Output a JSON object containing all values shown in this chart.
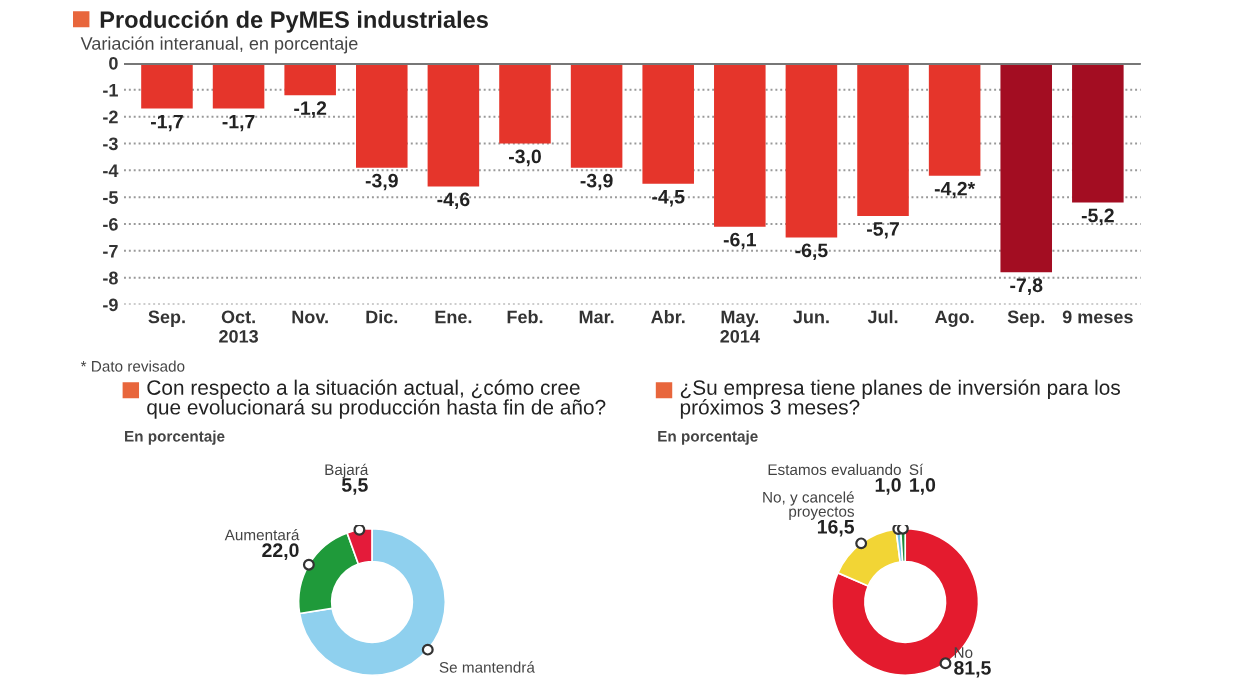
{
  "chart_data": [
    {
      "type": "bar",
      "title": "Producción de PyMES industriales",
      "subtitle": "Variación interanual, en porcentaje",
      "categories": [
        "Sep.",
        "Oct.\n2013",
        "Nov.",
        "Dic.",
        "Ene.",
        "Feb.",
        "Mar.",
        "Abr.",
        "May.\n2014",
        "Jun.",
        "Jul.",
        "Ago.",
        "Sep.",
        "9 meses"
      ],
      "values": [
        -1.7,
        -1.7,
        -1.2,
        -3.9,
        -4.6,
        -3.0,
        -3.9,
        -4.5,
        -6.1,
        -6.5,
        -5.7,
        -4.2,
        -7.8,
        -5.2
      ],
      "colors": [
        "#e5352b",
        "#e5352b",
        "#e5352b",
        "#e5352b",
        "#e5352b",
        "#e5352b",
        "#e5352b",
        "#e5352b",
        "#e5352b",
        "#e5352b",
        "#e5352b",
        "#e5352b",
        "#a30d22",
        "#a30d22"
      ],
      "value_labels": [
        "-1,7",
        "-1,7",
        "-1,2",
        "-3,9",
        "-4,6",
        "-3,0",
        "-3,9",
        "-4,5",
        "-6,1",
        "-6,5",
        "-5,7",
        "-4,2*",
        "-7,8",
        "-5,2"
      ],
      "ylim": [
        -9,
        0
      ],
      "yticks": [
        0,
        -1,
        -2,
        -3,
        -4,
        -5,
        -6,
        -7,
        -8,
        -9
      ],
      "grid": "y",
      "annotations": [
        "* Dato revisado"
      ]
    },
    {
      "type": "donut",
      "title": "Con respecto a la situación actual, ¿cómo cree que evolucionará su producción hasta fin de año?",
      "subtitle": "En porcentaje",
      "categories": [
        "Se mantendrá",
        "Aumentará",
        "Bajará"
      ],
      "values": [
        72.5,
        22.0,
        5.5
      ],
      "colors": [
        "#8fd0ee",
        "#1f9a3a",
        "#e41b3a"
      ],
      "value_labels": [
        null,
        "22,0",
        "5,5"
      ]
    },
    {
      "type": "donut",
      "title": "¿Su empresa tiene planes de inversión para los próximos 3 meses?",
      "subtitle": "En porcentaje",
      "categories": [
        "No",
        "No, y cancelé proyectos",
        "Estamos evaluando",
        "Sí"
      ],
      "values": [
        81.5,
        16.5,
        1.0,
        1.0
      ],
      "colors": [
        "#e41b2e",
        "#f2d535",
        "#6fc3e6",
        "#1f8a3a"
      ],
      "value_labels": [
        "81,5",
        "16,5",
        "1,0",
        "1,0"
      ]
    }
  ]
}
